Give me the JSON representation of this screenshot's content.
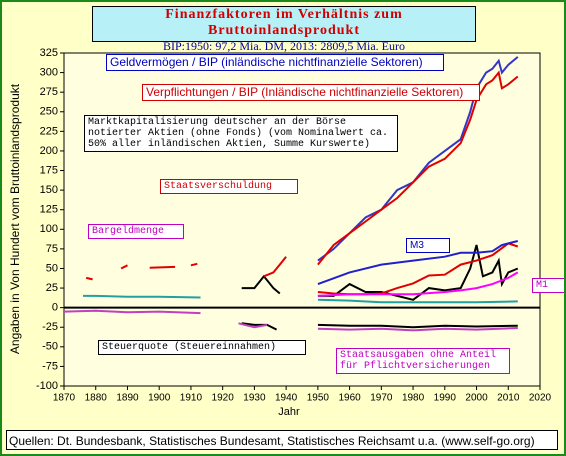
{
  "chart_data": {
    "type": "line",
    "title": "Finanzfaktoren im Verhältnis zum Bruttoinlandsprodukt",
    "subtitle": "BIP:1950: 97,2 Mia. DM, 2013: 2809,5 Mia. Euro",
    "xlabel": "Jahr",
    "ylabel": "Angaben in Von Hundert vom Bruttoinlandsprodukt",
    "xlim": [
      1870,
      2020
    ],
    "xticks": [
      1870,
      1880,
      1890,
      1900,
      1910,
      1920,
      1930,
      1940,
      1950,
      1960,
      1970,
      1980,
      1990,
      2000,
      2010,
      2020
    ],
    "ylim": [
      -100,
      325
    ],
    "yticks": [
      -100,
      -75,
      -50,
      -25,
      0,
      25,
      50,
      75,
      100,
      125,
      150,
      175,
      200,
      225,
      250,
      275,
      300,
      325
    ],
    "grid": false,
    "series": [
      {
        "name": "Geldvermögen / BIP (inländische nichtfinanzielle Sektoren)",
        "color": "#3535c8",
        "x": [
          1950,
          1955,
          1960,
          1965,
          1970,
          1975,
          1980,
          1985,
          1990,
          1995,
          1998,
          2000,
          2003,
          2005,
          2007,
          2008,
          2010,
          2013
        ],
        "values": [
          60,
          75,
          95,
          115,
          125,
          150,
          160,
          185,
          200,
          215,
          250,
          280,
          300,
          305,
          315,
          300,
          310,
          320
        ]
      },
      {
        "name": "Verpflichtungen / BIP (Inländische nichtfinanzielle Sektoren)",
        "color": "#e00000",
        "x": [
          1950,
          1955,
          1960,
          1965,
          1970,
          1975,
          1980,
          1985,
          1990,
          1995,
          1998,
          2000,
          2003,
          2005,
          2007,
          2008,
          2010,
          2013
        ],
        "values": [
          55,
          80,
          95,
          110,
          125,
          140,
          160,
          180,
          190,
          210,
          240,
          265,
          285,
          290,
          300,
          280,
          285,
          295
        ]
      },
      {
        "name": "Marktkapitalisierung deutscher an der Börse notierter Aktien (ohne Fonds) (vom Nominalwert ca. 50% aller inländischen Aktien, Summe Kurswerte)",
        "color": "#000000",
        "x": [
          1926,
          1930,
          1933,
          1936,
          1938,
          1940,
          1950,
          1955,
          1960,
          1965,
          1970,
          1975,
          1980,
          1985,
          1990,
          1995,
          1998,
          2000,
          2002,
          2005,
          2007,
          2008,
          2010,
          2013
        ],
        "values": [
          25,
          25,
          40,
          25,
          18,
          null,
          15,
          15,
          30,
          20,
          20,
          15,
          10,
          25,
          22,
          25,
          50,
          80,
          40,
          45,
          60,
          30,
          45,
          50
        ]
      },
      {
        "name": "Staatsverschuldung",
        "color": "#e00000",
        "x": [
          1877,
          1879,
          1880,
          1888,
          1890,
          1895,
          1897,
          1905,
          1907,
          1910,
          1912,
          1920,
          1933,
          1936,
          1938,
          1940,
          1945,
          1950,
          1955,
          1960,
          1965,
          1970,
          1975,
          1980,
          1985,
          1990,
          1995,
          2000,
          2005,
          2010,
          2013
        ],
        "values": [
          38,
          36,
          null,
          50,
          54,
          null,
          51,
          52,
          null,
          54,
          56,
          null,
          40,
          45,
          55,
          65,
          null,
          20,
          18,
          17,
          17,
          18,
          25,
          31,
          41,
          42,
          55,
          60,
          67,
          82,
          78
        ]
      },
      {
        "name": "M3",
        "color": "#2020d0",
        "x": [
          1950,
          1960,
          1970,
          1980,
          1990,
          1995,
          2000,
          2005,
          2008,
          2010,
          2013
        ],
        "values": [
          30,
          45,
          55,
          60,
          65,
          70,
          70,
          72,
          80,
          82,
          85
        ]
      },
      {
        "name": "Bargeldmenge",
        "color": "#20a0a0",
        "x": [
          1876,
          1880,
          1890,
          1900,
          1913,
          1920,
          1950,
          1960,
          1970,
          1980,
          1990,
          2000,
          2013
        ],
        "values": [
          15,
          15,
          14,
          14,
          13,
          null,
          10,
          9,
          7,
          7,
          7,
          7,
          8
        ]
      },
      {
        "name": "M1",
        "color": "#ff00ff",
        "x": [
          1950,
          1960,
          1970,
          1980,
          1990,
          1995,
          2000,
          2005,
          2010,
          2013
        ],
        "values": [
          15,
          17,
          17,
          17,
          20,
          22,
          25,
          30,
          38,
          45
        ]
      },
      {
        "name": "Steuerquote (Steuereinnahmen)",
        "color": "#000000",
        "x": [
          1926,
          1930,
          1934,
          1937,
          1940,
          1950,
          1960,
          1970,
          1980,
          1990,
          2000,
          2013
        ],
        "values": [
          -20,
          -22,
          -22,
          -28,
          null,
          -22,
          -23,
          -23,
          -25,
          -23,
          -24,
          -23
        ]
      },
      {
        "name": "Staatsausgaben ohne Anteil für Pflichtversicherungen",
        "color": "#c040c0",
        "x": [
          1870,
          1880,
          1890,
          1900,
          1913,
          1920,
          1925,
          1930,
          1934,
          1940,
          1950,
          1960,
          1970,
          1980,
          1990,
          2000,
          2013
        ],
        "values": [
          -5,
          -4,
          -6,
          -5,
          -7,
          null,
          -20,
          -25,
          -22,
          null,
          -27,
          -28,
          -27,
          -29,
          -27,
          -28,
          -26
        ]
      }
    ],
    "footer": "Quellen: Dt. Bundesbank, Statistisches Bundesamt, Statistisches Reichsamt u.a.      (www.self-go.org)"
  }
}
